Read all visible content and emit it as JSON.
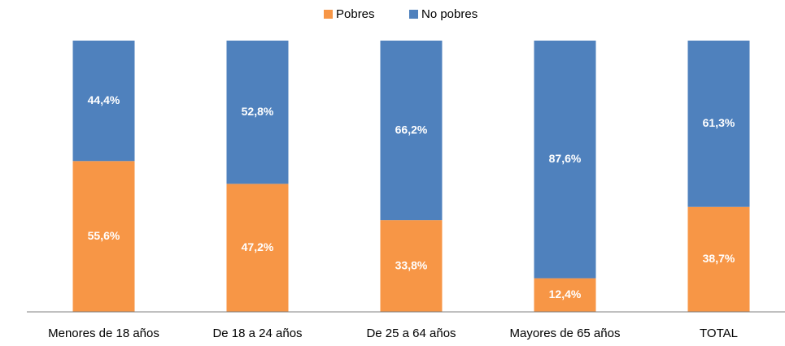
{
  "chart_data": {
    "type": "stacked_bar",
    "categories": [
      "Menores de 18 años",
      "De 18 a 24 años",
      "De 25 a 64 años",
      "Mayores de 65 años",
      "TOTAL"
    ],
    "series": [
      {
        "name": "Pobres",
        "color": "#F79646",
        "values": [
          55.6,
          47.2,
          33.8,
          12.4,
          38.7
        ],
        "value_labels": [
          "55,6%",
          "47,2%",
          "33,8%",
          "12,4%",
          "38,7%"
        ]
      },
      {
        "name": "No pobres",
        "color": "#4F81BD",
        "values": [
          44.4,
          52.8,
          66.2,
          87.6,
          61.3
        ],
        "value_labels": [
          "44,4%",
          "52,8%",
          "66,2%",
          "87,6%",
          "61,3%"
        ]
      }
    ],
    "ylim": [
      0,
      100
    ],
    "legend": "top"
  }
}
